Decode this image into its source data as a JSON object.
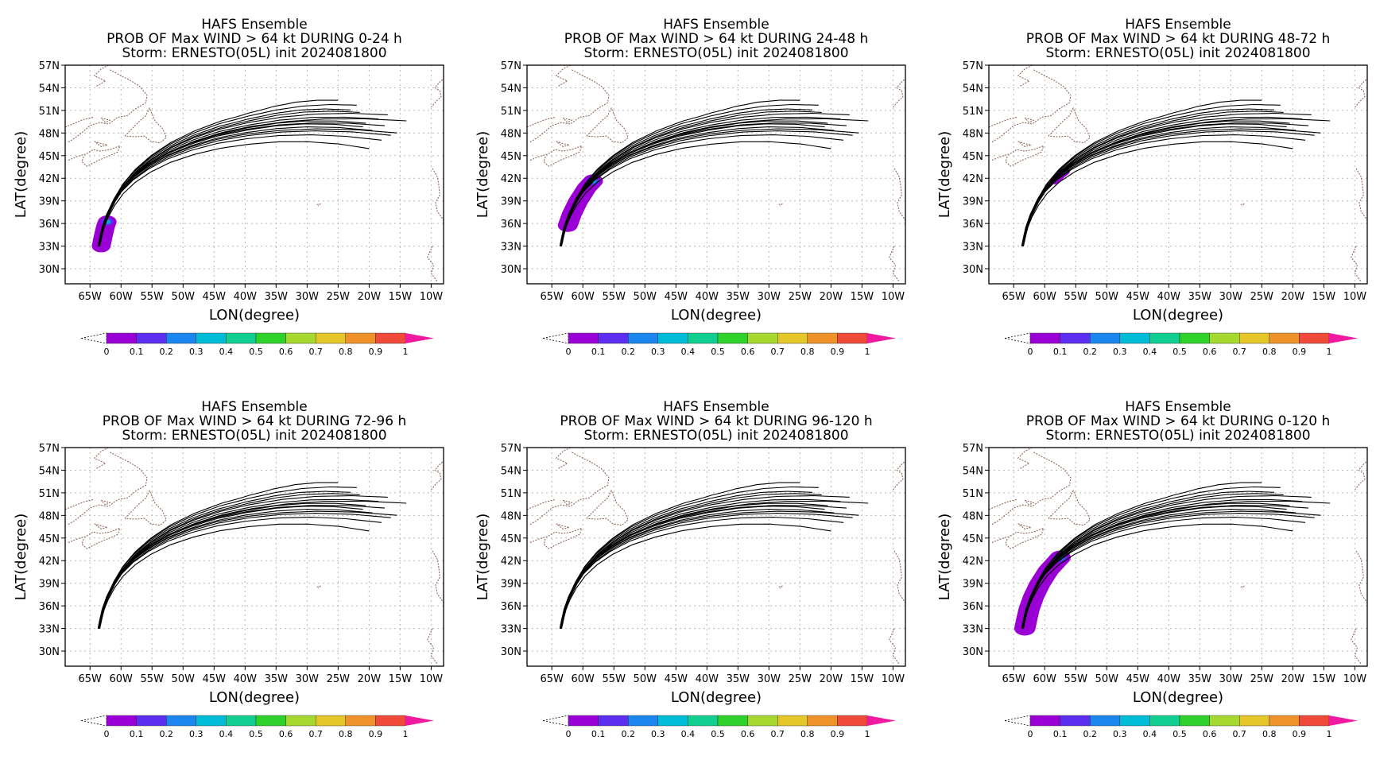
{
  "chart_data": [
    {
      "type": "map-probability",
      "title": "HAFS Ensemble",
      "subtitle": "PROB OF Max WIND > 64 kt DURING  0-24 h",
      "subtitle2": "Storm: ERNESTO(05L) init 2024081800",
      "xlabel": "LON(degree)",
      "ylabel": "LAT(degree)",
      "period": [
        0,
        24
      ],
      "prob_segment": [
        0.0,
        0.16
      ],
      "prob_spread": 1.5
    },
    {
      "type": "map-probability",
      "title": "HAFS Ensemble",
      "subtitle": "PROB OF Max WIND > 64 kt DURING 24-48 h",
      "subtitle2": "Storm: ERNESTO(05L) init 2024081800",
      "xlabel": "LON(degree)",
      "ylabel": "LAT(degree)",
      "period": [
        24,
        48
      ],
      "prob_segment": [
        0.14,
        0.37
      ],
      "prob_spread": 1.6
    },
    {
      "type": "map-probability",
      "title": "HAFS Ensemble",
      "subtitle": "PROB OF Max WIND > 64 kt DURING 48-72 h",
      "subtitle2": "Storm: ERNESTO(05L) init 2024081800",
      "xlabel": "LON(degree)",
      "ylabel": "LAT(degree)",
      "period": [
        48,
        72
      ],
      "prob_segment": [
        0.37,
        0.42
      ],
      "prob_spread": 0.8
    },
    {
      "type": "map-probability",
      "title": "HAFS Ensemble",
      "subtitle": "PROB OF Max WIND > 64 kt DURING 72-96 h",
      "subtitle2": "Storm: ERNESTO(05L) init 2024081800",
      "xlabel": "LON(degree)",
      "ylabel": "LAT(degree)",
      "period": [
        72,
        96
      ],
      "prob_segment": null,
      "prob_spread": 0
    },
    {
      "type": "map-probability",
      "title": "HAFS Ensemble",
      "subtitle": "PROB OF Max WIND > 64 kt DURING 96-120 h",
      "subtitle2": "Storm: ERNESTO(05L) init 2024081800",
      "xlabel": "LON(degree)",
      "ylabel": "LAT(degree)",
      "period": [
        96,
        120
      ],
      "prob_segment": null,
      "prob_spread": 0
    },
    {
      "type": "map-probability",
      "title": "HAFS Ensemble",
      "subtitle": "PROB OF Max WIND > 64 kt DURING 0-120 h",
      "subtitle2": "Storm: ERNESTO(05L) init 2024081800",
      "xlabel": "LON(degree)",
      "ylabel": "LAT(degree)",
      "period": [
        0,
        120
      ],
      "prob_segment": [
        0.0,
        0.4
      ],
      "prob_spread": 1.7
    }
  ],
  "map": {
    "xlim": [
      -69,
      -8
    ],
    "ylim": [
      28,
      57
    ],
    "xticks": [
      -65,
      -60,
      -55,
      -50,
      -45,
      -40,
      -35,
      -30,
      -25,
      -20,
      -15,
      -10
    ],
    "xtick_labels": [
      "65W",
      "60W",
      "55W",
      "50W",
      "45W",
      "40W",
      "35W",
      "30W",
      "25W",
      "20W",
      "15W",
      "10W"
    ],
    "yticks": [
      30,
      33,
      36,
      39,
      42,
      45,
      48,
      51,
      54,
      57
    ],
    "ytick_labels": [
      "30N",
      "33N",
      "36N",
      "39N",
      "42N",
      "45N",
      "48N",
      "51N",
      "54N",
      "57N"
    ],
    "grid": true,
    "coastline_color": "#8b5a4a"
  },
  "track_mean": [
    [
      -63.6,
      33.0
    ],
    [
      -63.3,
      34.2
    ],
    [
      -62.9,
      35.6
    ],
    [
      -62.2,
      37.2
    ],
    [
      -61.2,
      38.9
    ],
    [
      -59.8,
      40.7
    ],
    [
      -57.9,
      42.4
    ],
    [
      -55.4,
      44.0
    ],
    [
      -52.3,
      45.5
    ],
    [
      -48.5,
      46.8
    ],
    [
      -44.2,
      47.9
    ],
    [
      -39.5,
      48.7
    ],
    [
      -34.5,
      49.3
    ],
    [
      -29.5,
      49.6
    ],
    [
      -24.0,
      49.6
    ],
    [
      -18.5,
      49.3
    ]
  ],
  "track_count": 15,
  "track_shift_lat": [
    0.0,
    0.35,
    -0.3,
    0.7,
    -0.6,
    1.1,
    -1.0,
    1.5,
    -1.4,
    0.2,
    -0.2,
    0.9,
    -0.8,
    1.9,
    -2.1
  ],
  "track_shift_lon": [
    0.0,
    0.2,
    -0.2,
    0.4,
    -0.3,
    0.1,
    -0.1,
    0.3,
    -0.4,
    1.0,
    -0.6,
    0.5,
    -0.5,
    0.8,
    0.6
  ],
  "track_end_lon": [
    -20.5,
    -18.5,
    -21.0,
    -17.0,
    -19.5,
    -23.0,
    -16.5,
    -22.0,
    -18.0,
    -14.0,
    -17.5,
    -21.5,
    -15.5,
    -25.0,
    -20.0
  ],
  "colorbar": {
    "ticks": [
      "0",
      "0.1",
      "0.2",
      "0.3",
      "0.4",
      "0.5",
      "0.6",
      "0.7",
      "0.8",
      "0.9",
      "1"
    ],
    "colors": [
      "#9a00d6",
      "#5c2ef0",
      "#1a86ee",
      "#00bcd6",
      "#10cf90",
      "#2fd22a",
      "#a6d930",
      "#e6c72a",
      "#f0922a",
      "#f04a3a"
    ],
    "over_color": "#f01aa0"
  }
}
